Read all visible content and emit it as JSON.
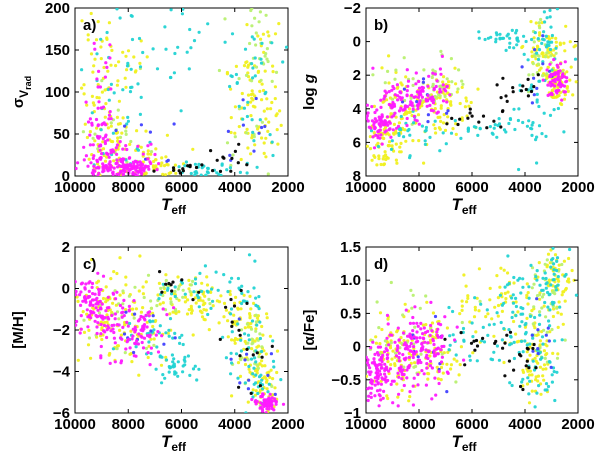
{
  "colors": {
    "black": "#000000",
    "cyan": "#22d3d3",
    "magenta": "#ff1aff",
    "yellow": "#f0f020",
    "lightgreen": "#b8f070",
    "blue": "#4040ff"
  },
  "chart_data": [
    {
      "type": "scatter",
      "panel": "a)",
      "xlabel_main": "T",
      "xlabel_sub": "eff",
      "ylabel_main": "σ",
      "ylabel_sub": "V",
      "ylabel_subsub": "rad",
      "xlim": [
        10000,
        2000
      ],
      "ylim": [
        0,
        200
      ],
      "xticks": [
        10000,
        8000,
        6000,
        4000,
        2000
      ],
      "xtick_labels": [
        "10000",
        "8000",
        "6000",
        "4000",
        "2000"
      ],
      "yticks": [
        0,
        50,
        100,
        150,
        200
      ],
      "ytick_labels": [
        "0",
        "50",
        "100",
        "150",
        "200"
      ],
      "series": [
        {
          "name": "yellow",
          "color": "#f0f020",
          "n": 320,
          "clusters": [
            [
              9000,
              40,
              500,
              45
            ],
            [
              8200,
              20,
              650,
              25
            ],
            [
              7000,
              10,
              500,
              15
            ],
            [
              3300,
              60,
              600,
              50
            ],
            [
              3000,
              110,
              300,
              60
            ],
            [
              8800,
              140,
              600,
              45
            ]
          ]
        },
        {
          "name": "lightgreen",
          "color": "#b8f070",
          "n": 70,
          "clusters": [
            [
              8600,
              50,
              700,
              45
            ],
            [
              3400,
              80,
              500,
              55
            ],
            [
              3000,
              150,
              300,
              35
            ]
          ]
        },
        {
          "name": "cyan",
          "color": "#22d3d3",
          "n": 150,
          "clusters": [
            [
              5000,
              6,
              700,
              6
            ],
            [
              3500,
              60,
              400,
              50
            ],
            [
              8500,
              80,
              900,
              60
            ],
            [
              6000,
              160,
              2200,
              30
            ]
          ]
        },
        {
          "name": "blue",
          "color": "#4040ff",
          "n": 20,
          "clusters": [
            [
              7500,
              30,
              900,
              30
            ],
            [
              3400,
              40,
              400,
              25
            ]
          ]
        },
        {
          "name": "magenta",
          "color": "#ff1aff",
          "n": 230,
          "clusters": [
            [
              8700,
              10,
              420,
              8
            ],
            [
              8300,
              18,
              550,
              12
            ],
            [
              7700,
              8,
              350,
              6
            ],
            [
              9000,
              60,
              300,
              40
            ]
          ]
        },
        {
          "name": "black",
          "color": "#000000",
          "n": 25,
          "clusters": [
            [
              5700,
              6,
              600,
              5
            ],
            [
              4300,
              20,
              350,
              15
            ]
          ]
        }
      ]
    },
    {
      "type": "scatter",
      "panel": "b)",
      "xlabel_main": "T",
      "xlabel_sub": "eff",
      "ylabel": "log g",
      "xlim": [
        10000,
        2000
      ],
      "ylim": [
        8,
        -2
      ],
      "xticks": [
        10000,
        8000,
        6000,
        4000,
        2000
      ],
      "xtick_labels": [
        "10000",
        "8000",
        "6000",
        "4000",
        "2000"
      ],
      "yticks": [
        -2,
        0,
        2,
        4,
        6,
        8
      ],
      "ytick_labels": [
        "−2",
        "0",
        "2",
        "4",
        "6",
        "8"
      ],
      "series": [
        {
          "name": "yellow",
          "color": "#f0f020",
          "n": 330,
          "clusters": [
            [
              8500,
              4.0,
              700,
              1.2
            ],
            [
              7000,
              3.8,
              500,
              1.0
            ],
            [
              3200,
              0.5,
              400,
              0.9
            ],
            [
              2800,
              2.5,
              300,
              0.6
            ],
            [
              9300,
              6.0,
              400,
              0.8
            ]
          ]
        },
        {
          "name": "lightgreen",
          "color": "#b8f070",
          "n": 80,
          "clusters": [
            [
              8600,
              3.2,
              700,
              1.1
            ],
            [
              3300,
              1.0,
              400,
              1.0
            ],
            [
              7200,
              2.6,
              500,
              0.8
            ]
          ]
        },
        {
          "name": "cyan",
          "color": "#22d3d3",
          "n": 160,
          "clusters": [
            [
              5200,
              5.2,
              800,
              0.3
            ],
            [
              3700,
              4.0,
              500,
              1.4
            ],
            [
              3300,
              0.0,
              300,
              0.8
            ],
            [
              4600,
              -0.2,
              500,
              0.3
            ],
            [
              8200,
              5.4,
              800,
              0.6
            ]
          ]
        },
        {
          "name": "blue",
          "color": "#4040ff",
          "n": 20,
          "clusters": [
            [
              7800,
              3.8,
              700,
              0.8
            ],
            [
              3500,
              2.0,
              400,
              1.0
            ]
          ]
        },
        {
          "name": "magenta",
          "color": "#ff1aff",
          "n": 260,
          "clusters": [
            [
              8700,
              3.6,
              500,
              0.7
            ],
            [
              9500,
              5.0,
              300,
              0.5
            ],
            [
              7700,
              3.0,
              500,
              0.8
            ],
            [
              2800,
              2.3,
              200,
              0.5
            ]
          ]
        },
        {
          "name": "black",
          "color": "#000000",
          "n": 30,
          "clusters": [
            [
              5600,
              4.6,
              700,
              0.3
            ],
            [
              4200,
              3.0,
              400,
              0.6
            ]
          ]
        }
      ]
    },
    {
      "type": "scatter",
      "panel": "c)",
      "xlabel_main": "T",
      "xlabel_sub": "eff",
      "ylabel": "[M/H]",
      "xlim": [
        10000,
        2000
      ],
      "ylim": [
        -6,
        2
      ],
      "xticks": [
        10000,
        8000,
        6000,
        4000,
        2000
      ],
      "xtick_labels": [
        "10000",
        "8000",
        "6000",
        "4000",
        "2000"
      ],
      "yticks": [
        -6,
        -4,
        -2,
        0,
        2
      ],
      "ytick_labels": [
        "−6",
        "−4",
        "−2",
        "0",
        "2"
      ],
      "series": [
        {
          "name": "yellow",
          "color": "#f0f020",
          "n": 330,
          "clusters": [
            [
              9000,
              -1.0,
              600,
              1.0
            ],
            [
              7500,
              -1.6,
              700,
              1.1
            ],
            [
              3600,
              -2.0,
              400,
              1.2
            ],
            [
              3000,
              -4.5,
              300,
              0.8
            ],
            [
              5500,
              -0.5,
              700,
              0.6
            ]
          ]
        },
        {
          "name": "lightgreen",
          "color": "#b8f070",
          "n": 80,
          "clusters": [
            [
              8400,
              -1.2,
              900,
              1.0
            ],
            [
              3300,
              -3.0,
              400,
              1.0
            ],
            [
              6000,
              -0.4,
              900,
              0.5
            ]
          ]
        },
        {
          "name": "cyan",
          "color": "#22d3d3",
          "n": 170,
          "clusters": [
            [
              5500,
              -0.1,
              900,
              0.5
            ],
            [
              3700,
              -1.0,
              400,
              1.2
            ],
            [
              3200,
              -4.0,
              400,
              1.0
            ],
            [
              7000,
              -2.4,
              600,
              0.6
            ],
            [
              6200,
              -3.8,
              500,
              0.4
            ]
          ]
        },
        {
          "name": "blue",
          "color": "#4040ff",
          "n": 20,
          "clusters": [
            [
              7500,
              -1.8,
              700,
              0.8
            ],
            [
              3300,
              -3.8,
              400,
              0.8
            ]
          ]
        },
        {
          "name": "magenta",
          "color": "#ff1aff",
          "n": 260,
          "clusters": [
            [
              8800,
              -1.5,
              500,
              0.8
            ],
            [
              7600,
              -2.2,
              600,
              0.8
            ],
            [
              9400,
              -0.6,
              300,
              0.5
            ],
            [
              2800,
              -5.5,
              250,
              0.2
            ]
          ]
        },
        {
          "name": "black",
          "color": "#000000",
          "n": 30,
          "clusters": [
            [
              6000,
              0.0,
              800,
              0.4
            ],
            [
              4000,
              -1.4,
              300,
              1.0
            ],
            [
              3200,
              -4.2,
              300,
              0.8
            ]
          ]
        }
      ]
    },
    {
      "type": "scatter",
      "panel": "d)",
      "xlabel_main": "T",
      "xlabel_sub": "eff",
      "ylabel": "[α/Fe]",
      "xlim": [
        10000,
        2000
      ],
      "ylim": [
        -1,
        1.5
      ],
      "xticks": [
        10000,
        8000,
        6000,
        4000,
        2000
      ],
      "xtick_labels": [
        "10000",
        "8000",
        "6000",
        "4000",
        "2000"
      ],
      "yticks": [
        -1,
        -0.5,
        0,
        0.5,
        1,
        1.5
      ],
      "ytick_labels": [
        "−1",
        "−0.5",
        "0",
        "0.5",
        "1.0",
        "1.5"
      ],
      "series": [
        {
          "name": "yellow",
          "color": "#f0f020",
          "n": 330,
          "clusters": [
            [
              9000,
              -0.1,
              600,
              0.35
            ],
            [
              7500,
              -0.1,
              700,
              0.3
            ],
            [
              3600,
              -0.2,
              400,
              0.3
            ],
            [
              2800,
              1.0,
              300,
              0.25
            ],
            [
              5000,
              0.6,
              900,
              0.3
            ]
          ]
        },
        {
          "name": "lightgreen",
          "color": "#b8f070",
          "n": 80,
          "clusters": [
            [
              8400,
              0.1,
              900,
              0.35
            ],
            [
              3300,
              0.5,
              400,
              0.4
            ]
          ]
        },
        {
          "name": "cyan",
          "color": "#22d3d3",
          "n": 170,
          "clusters": [
            [
              5500,
              0.1,
              900,
              0.3
            ],
            [
              3600,
              -0.3,
              400,
              0.35
            ],
            [
              3000,
              1.0,
              350,
              0.2
            ],
            [
              4200,
              0.6,
              500,
              0.3
            ]
          ]
        },
        {
          "name": "blue",
          "color": "#4040ff",
          "n": 20,
          "clusters": [
            [
              7600,
              -0.1,
              700,
              0.3
            ],
            [
              3300,
              0.3,
              400,
              0.4
            ]
          ]
        },
        {
          "name": "magenta",
          "color": "#ff1aff",
          "n": 260,
          "clusters": [
            [
              8600,
              -0.15,
              500,
              0.25
            ],
            [
              7700,
              0.0,
              500,
              0.25
            ],
            [
              9500,
              -0.4,
              300,
              0.2
            ]
          ]
        },
        {
          "name": "black",
          "color": "#000000",
          "n": 30,
          "clusters": [
            [
              5800,
              0.05,
              700,
              0.1
            ],
            [
              4000,
              -0.1,
              300,
              0.3
            ]
          ]
        }
      ]
    }
  ]
}
